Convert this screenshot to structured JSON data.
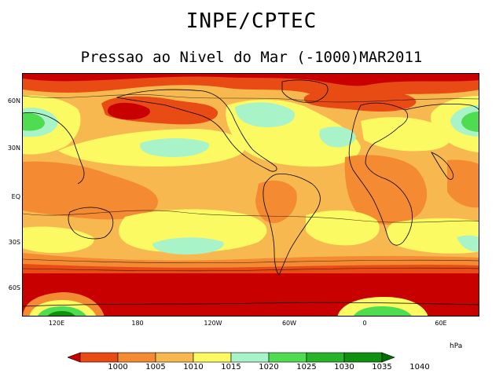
{
  "header": {
    "title": "INPE/CPTEC",
    "subtitle": "Pressao ao Nivel do Mar (-1000)MAR2011"
  },
  "map": {
    "lat_labels": [
      "60N",
      "30N",
      "EQ",
      "30S",
      "60S"
    ],
    "lon_labels": [
      "120E",
      "180",
      "120W",
      "60W",
      "0",
      "60E"
    ]
  },
  "legend": {
    "unit": "hPa",
    "levels": [
      "1000",
      "1005",
      "1010",
      "1015",
      "1020",
      "1025",
      "1030",
      "1035",
      "1040"
    ],
    "colors": [
      "#c80000",
      "#e84b14",
      "#f48a32",
      "#f8b850",
      "#fcfa62",
      "#a8f4c8",
      "#50dc50",
      "#28b428",
      "#109010",
      "#006e00"
    ]
  }
}
